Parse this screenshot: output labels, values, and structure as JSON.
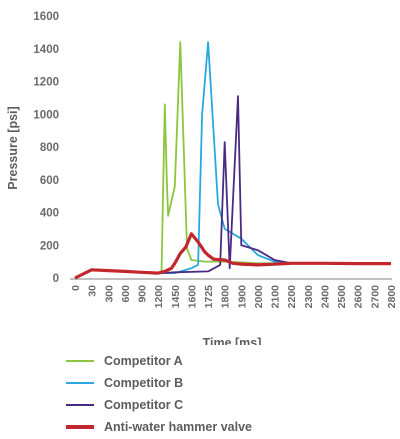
{
  "chart_data": {
    "type": "line",
    "title": "",
    "xlabel": "Time [ms]",
    "ylabel": "Pressure [psi]",
    "ylim": [
      0,
      1600
    ],
    "yticks": [
      0,
      200,
      400,
      600,
      800,
      1000,
      1200,
      1400,
      1600
    ],
    "ytick_labels": [
      "0",
      "200",
      "400",
      "600",
      "800",
      "1000",
      "1200",
      "1400",
      "1600"
    ],
    "xticks": [
      0,
      30,
      300,
      600,
      900,
      1200,
      1450,
      1600,
      1725,
      1800,
      1900,
      2000,
      2100,
      2200,
      2300,
      2400,
      2500,
      2600,
      2700,
      2800
    ],
    "x_spacing": "categorical (unequal time steps, equally spaced ticks)",
    "grid": false,
    "legend": "bottom",
    "series": [
      {
        "name": "Competitor A",
        "color": "#8cc63f",
        "points": [
          [
            0,
            0
          ],
          [
            30,
            50
          ],
          [
            300,
            45
          ],
          [
            600,
            40
          ],
          [
            900,
            35
          ],
          [
            1200,
            30
          ],
          [
            1250,
            30
          ],
          [
            1300,
            1060
          ],
          [
            1330,
            600
          ],
          [
            1350,
            380
          ],
          [
            1450,
            560
          ],
          [
            1500,
            1440
          ],
          [
            1560,
            180
          ],
          [
            1600,
            110
          ],
          [
            1700,
            100
          ],
          [
            1725,
            100
          ],
          [
            1800,
            100
          ],
          [
            1900,
            95
          ],
          [
            2000,
            90
          ],
          [
            2100,
            90
          ],
          [
            2200,
            90
          ],
          [
            2400,
            90
          ],
          [
            2600,
            88
          ],
          [
            2800,
            88
          ]
        ]
      },
      {
        "name": "Competitor B",
        "color": "#29a8e0",
        "points": [
          [
            0,
            0
          ],
          [
            30,
            50
          ],
          [
            300,
            45
          ],
          [
            600,
            40
          ],
          [
            900,
            35
          ],
          [
            1200,
            30
          ],
          [
            1450,
            30
          ],
          [
            1600,
            60
          ],
          [
            1650,
            80
          ],
          [
            1680,
            1000
          ],
          [
            1725,
            1440
          ],
          [
            1770,
            450
          ],
          [
            1800,
            300
          ],
          [
            1900,
            240
          ],
          [
            2000,
            140
          ],
          [
            2100,
            100
          ],
          [
            2200,
            90
          ],
          [
            2400,
            90
          ],
          [
            2600,
            88
          ],
          [
            2800,
            88
          ]
        ]
      },
      {
        "name": "Competitor C",
        "color": "#4b2a84",
        "points": [
          [
            0,
            0
          ],
          [
            30,
            50
          ],
          [
            300,
            45
          ],
          [
            600,
            40
          ],
          [
            900,
            35
          ],
          [
            1200,
            30
          ],
          [
            1450,
            35
          ],
          [
            1725,
            40
          ],
          [
            1780,
            80
          ],
          [
            1800,
            830
          ],
          [
            1830,
            60
          ],
          [
            1880,
            1110
          ],
          [
            1900,
            200
          ],
          [
            2000,
            170
          ],
          [
            2100,
            110
          ],
          [
            2200,
            90
          ],
          [
            2400,
            90
          ],
          [
            2600,
            88
          ],
          [
            2800,
            88
          ]
        ]
      },
      {
        "name": "Anti-water hammer valve",
        "color": "#c1272d",
        "points": [
          [
            0,
            0
          ],
          [
            30,
            50
          ],
          [
            300,
            45
          ],
          [
            600,
            40
          ],
          [
            900,
            35
          ],
          [
            1200,
            30
          ],
          [
            1300,
            40
          ],
          [
            1400,
            60
          ],
          [
            1450,
            90
          ],
          [
            1500,
            150
          ],
          [
            1550,
            190
          ],
          [
            1600,
            270
          ],
          [
            1650,
            220
          ],
          [
            1700,
            160
          ],
          [
            1725,
            140
          ],
          [
            1750,
            115
          ],
          [
            1800,
            110
          ],
          [
            1850,
            90
          ],
          [
            1900,
            85
          ],
          [
            2000,
            80
          ],
          [
            2100,
            85
          ],
          [
            2200,
            90
          ],
          [
            2400,
            90
          ],
          [
            2600,
            88
          ],
          [
            2800,
            88
          ]
        ]
      }
    ]
  }
}
